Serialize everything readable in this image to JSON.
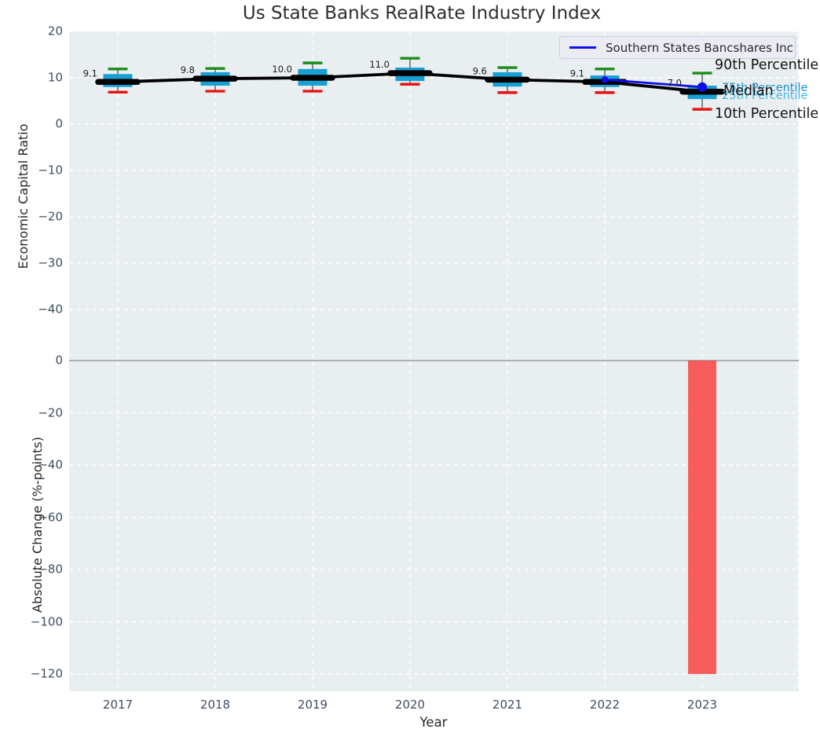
{
  "title": "Us State Banks RealRate Industry Index",
  "legend": {
    "series_label": "Southern States Bancshares Inc"
  },
  "top_axis": {
    "ylabel": "Economic Capital Ratio",
    "tick_values": [
      20,
      10,
      0,
      -10,
      -20,
      -30,
      -40
    ],
    "tick_labels": [
      "20",
      "10",
      "0",
      "−10",
      "−20",
      "−30",
      "−40"
    ],
    "annotations": {
      "p90": "90th Percentile",
      "p75": "75th Percentile",
      "median": "Median",
      "p25": "25th Percentile",
      "p10": "10th Percentile"
    }
  },
  "bottom_axis": {
    "ylabel": "Absolute Change (%-points)",
    "xlabel": "Year",
    "tick_values": [
      0,
      -20,
      -40,
      -60,
      -80,
      -100,
      -120
    ],
    "tick_labels": [
      "0",
      "−20",
      "−40",
      "−60",
      "−80",
      "−100",
      "−120"
    ],
    "x_tick_labels": [
      "2017",
      "2018",
      "2019",
      "2020",
      "2021",
      "2022",
      "2023"
    ]
  },
  "median_labels": [
    "9.1",
    "9.8",
    "10.0",
    "11.0",
    "9.6",
    "9.1",
    "7.0"
  ],
  "colors": {
    "plot_bg": "#e9eef0",
    "box": "#18a0d5",
    "p90_cap": "#1a8c1a",
    "p10_cap": "#e81212",
    "median": "#000000",
    "company_line": "#0e0eea",
    "bar_negative": "#fa3c3c",
    "p75_label": "#1f8fc9",
    "p25_label": "#45b8e8",
    "tick_text": "#3d4e63",
    "zero_line": "#a3a7ab"
  },
  "chart_data": [
    {
      "type": "boxplot+line",
      "title": "Us State Banks RealRate Industry Index",
      "ylabel": "Economic Capital Ratio",
      "x": [
        2017,
        2018,
        2019,
        2020,
        2021,
        2022,
        2023
      ],
      "box_series": {
        "median": [
          9.1,
          9.8,
          10.0,
          11.0,
          9.6,
          9.1,
          7.0
        ],
        "p75": [
          10.8,
          11.2,
          11.9,
          12.2,
          11.2,
          10.5,
          8.3
        ],
        "p25": [
          8.0,
          8.3,
          8.3,
          9.3,
          8.1,
          8.0,
          5.4
        ],
        "p90": [
          11.9,
          12.0,
          13.2,
          14.2,
          12.2,
          11.9,
          11.0
        ],
        "p10": [
          6.9,
          7.1,
          7.1,
          8.6,
          6.8,
          6.8,
          3.2
        ]
      },
      "line_series": {
        "name": "Southern States Bancshares Inc",
        "x": [
          2022,
          2023
        ],
        "values": [
          9.6,
          8.0
        ]
      },
      "ylim": [
        -45,
        20
      ],
      "grid": true,
      "legend_position": "upper right"
    },
    {
      "type": "bar",
      "ylabel": "Absolute Change (%-points)",
      "xlabel": "Year",
      "categories": [
        2017,
        2018,
        2019,
        2020,
        2021,
        2022,
        2023
      ],
      "values": [
        0,
        0,
        0,
        0,
        0,
        0,
        -120
      ],
      "ylim": [
        -126,
        10
      ],
      "grid": true
    }
  ]
}
